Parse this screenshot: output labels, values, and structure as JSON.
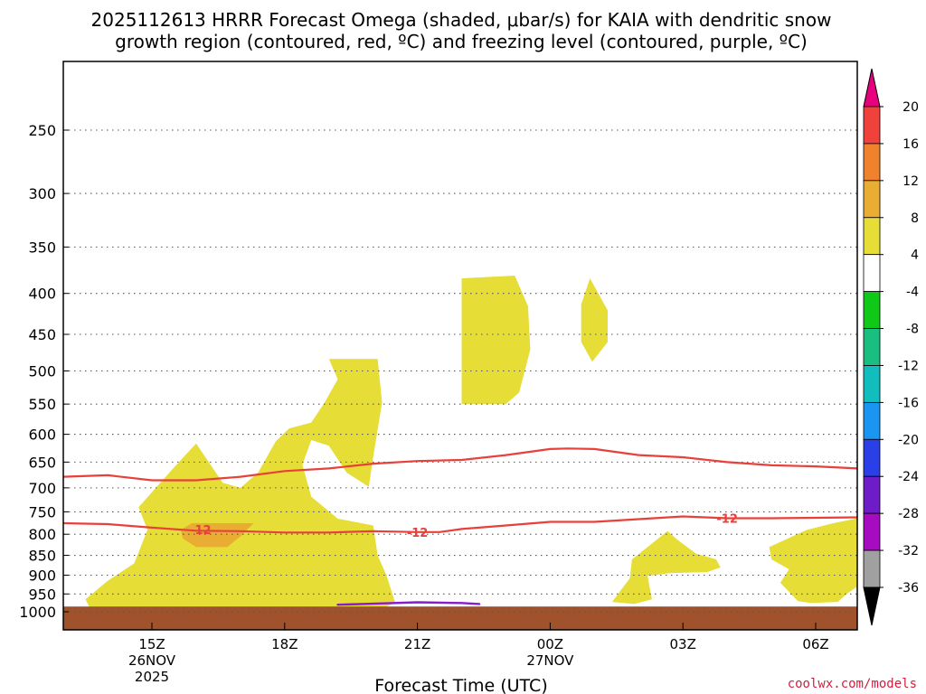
{
  "header": {
    "title_line1": "2025112613 HRRR Forecast Omega (shaded, μbar/s) for KAIA with dendritic snow",
    "title_line2": "growth region (contoured, red, ºC) and freezing level (contoured, purple, ºC)"
  },
  "credit": "coolwx.com/models",
  "chart_data": {
    "type": "time-height cross section (filled contour + line contours)",
    "title": "2025112613 HRRR Forecast Omega (shaded, μbar/s) for KAIA with dendritic snow growth region (contoured, red, ºC) and freezing level (contoured, purple, ºC)",
    "xlabel": "Forecast Time (UTC)",
    "ylabel": "",
    "x_unit": "forecast hour from 2025-11-26 13Z",
    "xlim": [
      0,
      18
    ],
    "ylim": [
      1040,
      200
    ],
    "y_scale": "log-pressure (hPa), inverted",
    "x_ticks": [
      {
        "hour": 2,
        "lines": [
          "15Z",
          "26NOV",
          "2025"
        ]
      },
      {
        "hour": 5,
        "lines": [
          "18Z"
        ]
      },
      {
        "hour": 8,
        "lines": [
          "21Z"
        ]
      },
      {
        "hour": 11,
        "lines": [
          "00Z",
          "27NOV"
        ]
      },
      {
        "hour": 14,
        "lines": [
          "03Z"
        ]
      },
      {
        "hour": 17,
        "lines": [
          "06Z"
        ]
      }
    ],
    "y_ticks": [
      "250",
      "300",
      "350",
      "400",
      "450",
      "500",
      "550",
      "600",
      "650",
      "700",
      "750",
      "800",
      "850",
      "900",
      "950",
      "1000"
    ],
    "colorbar": {
      "labels": [
        "20",
        "16",
        "12",
        "8",
        "4",
        "-4",
        "-8",
        "-12",
        "-16",
        "-20",
        "-24",
        "-28",
        "-32",
        "-36"
      ],
      "bins": [
        {
          "range": "20+",
          "color": "#e6007e"
        },
        {
          "range": "16 to 20",
          "color": "#f0413b"
        },
        {
          "range": "12 to 16",
          "color": "#f0822d"
        },
        {
          "range": "8 to 12",
          "color": "#e9ad34"
        },
        {
          "range": "4 to 8",
          "color": "#e6dd36"
        },
        {
          "range": "-4 to 4",
          "color": "#ffffff"
        },
        {
          "range": "-8 to -4",
          "color": "#10c818"
        },
        {
          "range": "-12 to -8",
          "color": "#19be80"
        },
        {
          "range": "-16 to -12",
          "color": "#12bdbd"
        },
        {
          "range": "-20 to -16",
          "color": "#1b95f2"
        },
        {
          "range": "-24 to -20",
          "color": "#2b3fe8"
        },
        {
          "range": "-28 to -24",
          "color": "#6e1bc8"
        },
        {
          "range": "-32 to -28",
          "color": "#a60bc1"
        },
        {
          "range": "-36 to -32",
          "color": "#a0a0a0"
        },
        {
          "range": "< -36",
          "color": "#000000"
        }
      ]
    },
    "omega_regions": [
      {
        "name": "lower-left ascent area",
        "level": "4 to 8",
        "color": "#e6dd36",
        "outline": [
          [
            0.5,
            965
          ],
          [
            1,
            915
          ],
          [
            1.6,
            870
          ],
          [
            1.9,
            790
          ],
          [
            1.7,
            740
          ],
          [
            2.5,
            660
          ],
          [
            3.0,
            616
          ],
          [
            3.6,
            690
          ],
          [
            4.0,
            700
          ],
          [
            4.4,
            670
          ],
          [
            4.8,
            612
          ],
          [
            5.1,
            590
          ],
          [
            5.6,
            580
          ],
          [
            5.9,
            548
          ],
          [
            6.2,
            512
          ],
          [
            6.0,
            483
          ],
          [
            7.1,
            483
          ],
          [
            7.2,
            548
          ],
          [
            7.0,
            640
          ],
          [
            6.9,
            698
          ],
          [
            6.4,
            670
          ],
          [
            6.0,
            620
          ],
          [
            5.6,
            610
          ],
          [
            5.4,
            655
          ],
          [
            5.6,
            718
          ],
          [
            6.2,
            765
          ],
          [
            7.0,
            780
          ],
          [
            7.1,
            850
          ],
          [
            7.3,
            900
          ],
          [
            7.5,
            975
          ],
          [
            7.2,
            990
          ],
          [
            4.0,
            990
          ],
          [
            2.0,
            990
          ],
          [
            0.6,
            990
          ]
        ]
      },
      {
        "name": "orange core",
        "level": "8 to 12",
        "color": "#e9ad34",
        "outline": [
          [
            2.65,
            790
          ],
          [
            2.9,
            775
          ],
          [
            4.3,
            775
          ],
          [
            4.0,
            805
          ],
          [
            3.7,
            830
          ],
          [
            3.0,
            830
          ],
          [
            2.7,
            810
          ]
        ]
      },
      {
        "name": "mid-level cell near 23Z",
        "level": "4 to 8",
        "color": "#e6dd36",
        "outline": [
          [
            9.0,
            383
          ],
          [
            10.2,
            380
          ],
          [
            10.5,
            415
          ],
          [
            10.55,
            470
          ],
          [
            10.3,
            532
          ],
          [
            10.0,
            550
          ],
          [
            9.0,
            550
          ]
        ]
      },
      {
        "name": "small cell near 01Z",
        "level": "4 to 8",
        "color": "#e6dd36",
        "outline": [
          [
            11.7,
            413
          ],
          [
            11.9,
            383
          ],
          [
            12.3,
            420
          ],
          [
            12.3,
            460
          ],
          [
            11.95,
            487
          ],
          [
            11.7,
            460
          ]
        ]
      },
      {
        "name": "low cell near 03Z",
        "level": "4 to 8",
        "color": "#e6dd36",
        "outline": [
          [
            12.4,
            972
          ],
          [
            12.8,
            908
          ],
          [
            12.85,
            860
          ],
          [
            13.2,
            830
          ],
          [
            13.65,
            793
          ],
          [
            13.9,
            815
          ],
          [
            14.3,
            846
          ],
          [
            14.75,
            860
          ],
          [
            14.85,
            880
          ],
          [
            14.55,
            892
          ],
          [
            13.7,
            895
          ],
          [
            13.2,
            902
          ],
          [
            13.3,
            965
          ],
          [
            12.9,
            978
          ]
        ]
      },
      {
        "name": "low cell near 06Z",
        "level": "4 to 8",
        "color": "#e6dd36",
        "outline": [
          [
            15.95,
            830
          ],
          [
            16.8,
            790
          ],
          [
            17.4,
            775
          ],
          [
            17.9,
            765
          ],
          [
            18.0,
            765
          ],
          [
            18.0,
            930
          ],
          [
            17.7,
            950
          ],
          [
            17.5,
            972
          ],
          [
            16.9,
            975
          ],
          [
            16.6,
            970
          ],
          [
            16.2,
            920
          ],
          [
            16.4,
            885
          ],
          [
            16.0,
            860
          ]
        ]
      }
    ],
    "dgz_contours": [
      {
        "label": "upper bound (approx -10C)",
        "color": "#e8403a",
        "points": [
          [
            0,
            678
          ],
          [
            1,
            675
          ],
          [
            2,
            685
          ],
          [
            3,
            685
          ],
          [
            4,
            678
          ],
          [
            5,
            667
          ],
          [
            6,
            662
          ],
          [
            7,
            653
          ],
          [
            8,
            648
          ],
          [
            9,
            646
          ],
          [
            10,
            637
          ],
          [
            11,
            626
          ],
          [
            11.4,
            625
          ],
          [
            12,
            626
          ],
          [
            13,
            637
          ],
          [
            14,
            641
          ],
          [
            15,
            650
          ],
          [
            16,
            656
          ],
          [
            17,
            658
          ],
          [
            18,
            662
          ]
        ]
      },
      {
        "label": "-12",
        "color": "#e8403a",
        "points": [
          [
            0,
            775
          ],
          [
            1,
            777
          ],
          [
            2,
            785
          ],
          [
            3,
            792
          ],
          [
            4,
            793
          ],
          [
            5,
            796
          ],
          [
            6,
            796
          ],
          [
            7,
            793
          ],
          [
            8,
            795
          ],
          [
            8.5,
            795
          ],
          [
            9,
            788
          ],
          [
            10,
            780
          ],
          [
            11,
            772
          ],
          [
            12,
            772
          ],
          [
            13,
            766
          ],
          [
            14,
            760
          ],
          [
            15,
            764
          ],
          [
            16,
            764
          ],
          [
            17,
            763
          ],
          [
            18,
            762
          ]
        ]
      }
    ],
    "freezing_level_contour": {
      "label": "0C",
      "color": "#8b1ad0",
      "points": [
        [
          6.2,
          980
        ],
        [
          7.0,
          977
        ],
        [
          8.0,
          973
        ],
        [
          9.0,
          975
        ],
        [
          9.4,
          978
        ]
      ]
    },
    "contour_labels": [
      {
        "text": "-12",
        "hour": 3.1,
        "pressure": 789
      },
      {
        "text": "-12",
        "hour": 8.0,
        "pressure": 795
      },
      {
        "text": "-12",
        "hour": 15.0,
        "pressure": 764
      }
    ],
    "terrain": {
      "top_pressure": 985,
      "color": "#a0522d"
    }
  }
}
